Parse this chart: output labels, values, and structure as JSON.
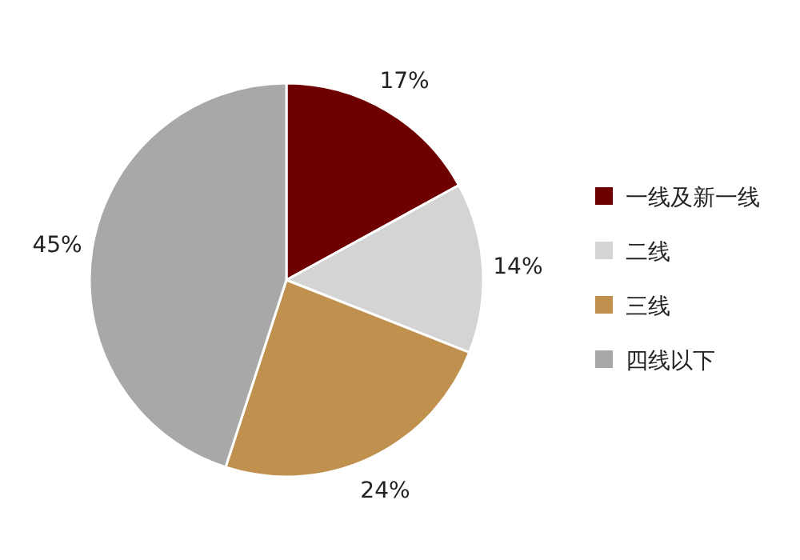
{
  "chart_data": {
    "type": "pie",
    "categories": [
      "一线及新一线",
      "二线",
      "三线",
      "四线以下"
    ],
    "values": [
      17,
      14,
      24,
      45
    ],
    "value_labels": [
      "17%",
      "14%",
      "24%",
      "45%"
    ],
    "colors": [
      "#6e0000",
      "#d4d4d4",
      "#c0914e",
      "#a8a8a8"
    ],
    "legend": "right"
  }
}
